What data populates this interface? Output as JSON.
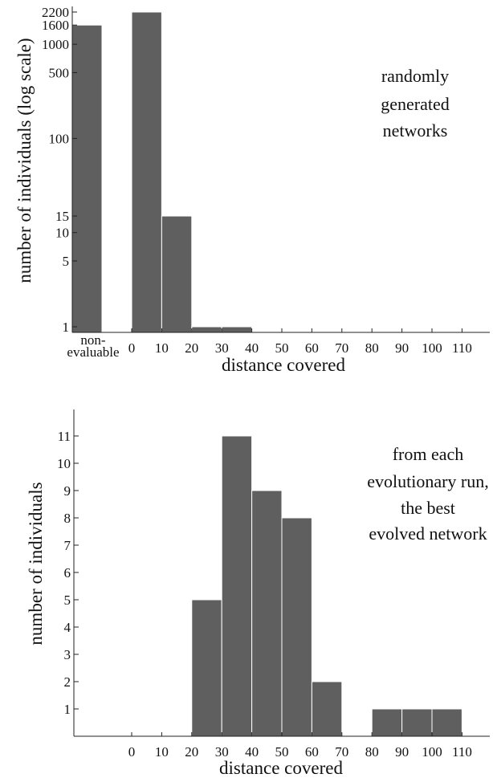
{
  "chart_data": [
    {
      "type": "bar",
      "yscale": "log",
      "title": "",
      "xlabel": "distance covered",
      "ylabel": "number of individuals (log scale)",
      "annotation": [
        "randomly",
        "generated",
        "networks"
      ],
      "x_tick_labels": [
        "0",
        "10",
        "20",
        "30",
        "40",
        "50",
        "60",
        "70",
        "80",
        "90",
        "100",
        "110"
      ],
      "x_special_label": [
        "non-",
        "evaluable"
      ],
      "y_ticks": [
        1,
        5,
        10,
        15,
        100,
        500,
        1000,
        1600,
        2200
      ],
      "y_tick_labels": [
        "1",
        "5",
        "10",
        "15",
        "100",
        "500",
        "1000",
        "1600",
        "2200"
      ],
      "ylim": [
        1,
        2200
      ],
      "bars": [
        {
          "label": "non-evaluable",
          "value": 1600
        },
        {
          "label": "0-10",
          "value": 2200
        },
        {
          "label": "10-20",
          "value": 15
        },
        {
          "label": "20-30",
          "value": 1
        },
        {
          "label": "30-40",
          "value": 1
        }
      ],
      "bar_color": "#5f5f5f",
      "grid": false
    },
    {
      "type": "bar",
      "yscale": "linear",
      "title": "",
      "xlabel": "distance covered",
      "ylabel": "number of individuals",
      "annotation": [
        "from each",
        "evolutionary run,",
        "the best",
        "evolved network"
      ],
      "x_tick_labels": [
        "0",
        "10",
        "20",
        "30",
        "40",
        "50",
        "60",
        "70",
        "80",
        "90",
        "100",
        "110"
      ],
      "y_tick_labels": [
        "1",
        "2",
        "3",
        "4",
        "5",
        "6",
        "7",
        "8",
        "9",
        "10",
        "11"
      ],
      "ylim": [
        0,
        12
      ],
      "bars": [
        {
          "label": "20-30",
          "value": 5
        },
        {
          "label": "30-40",
          "value": 11
        },
        {
          "label": "40-50",
          "value": 9
        },
        {
          "label": "50-60",
          "value": 8
        },
        {
          "label": "60-70",
          "value": 2
        },
        {
          "label": "80-90",
          "value": 1
        },
        {
          "label": "90-100",
          "value": 1
        },
        {
          "label": "100-110",
          "value": 1
        }
      ],
      "bar_color": "#5f5f5f",
      "grid": false
    }
  ]
}
